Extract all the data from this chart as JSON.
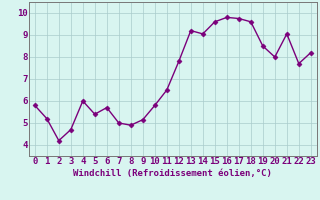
{
  "x": [
    0,
    1,
    2,
    3,
    4,
    5,
    6,
    7,
    8,
    9,
    10,
    11,
    12,
    13,
    14,
    15,
    16,
    17,
    18,
    19,
    20,
    21,
    22,
    23
  ],
  "y": [
    5.8,
    5.2,
    4.2,
    4.7,
    6.0,
    5.4,
    5.7,
    5.0,
    4.9,
    5.15,
    5.8,
    6.5,
    7.8,
    9.2,
    9.05,
    9.6,
    9.8,
    9.75,
    9.6,
    8.5,
    8.0,
    9.05,
    7.7,
    8.2
  ],
  "line_color": "#7B007B",
  "marker": "D",
  "marker_size": 2.5,
  "bg_color": "#d8f5f0",
  "grid_color": "#aacccc",
  "xlabel": "Windchill (Refroidissement éolien,°C)",
  "xlim": [
    -0.5,
    23.5
  ],
  "ylim": [
    3.5,
    10.5
  ],
  "yticks": [
    4,
    5,
    6,
    7,
    8,
    9,
    10
  ],
  "xticks": [
    0,
    1,
    2,
    3,
    4,
    5,
    6,
    7,
    8,
    9,
    10,
    11,
    12,
    13,
    14,
    15,
    16,
    17,
    18,
    19,
    20,
    21,
    22,
    23
  ],
  "xlabel_fontsize": 6.5,
  "tick_fontsize": 6.5,
  "line_width": 1.0,
  "spine_color": "#777777"
}
